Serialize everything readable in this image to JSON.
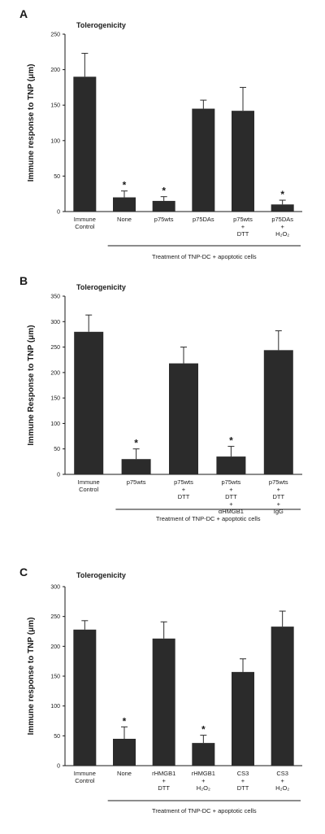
{
  "chart_data": [
    {
      "panel_label": "A",
      "type": "bar",
      "title": "Tolerogenicity",
      "ylabel": "Immune response to TNP (μm)",
      "ylim": [
        0,
        250
      ],
      "yticks": [
        0,
        50,
        100,
        150,
        200,
        250
      ],
      "categories": [
        [
          "Immune",
          "Control"
        ],
        [
          "None"
        ],
        [
          "p75wts"
        ],
        [
          "p75DAs"
        ],
        [
          "p75wts",
          "+",
          "DTT"
        ],
        [
          "p75DAs",
          "+",
          "H₂O₂"
        ]
      ],
      "values": [
        190,
        20,
        15,
        145,
        142,
        10
      ],
      "errors": [
        33,
        9,
        6,
        12,
        33,
        6
      ],
      "significant": [
        false,
        true,
        true,
        false,
        false,
        true
      ],
      "star_symbol": "*",
      "footnote": "Treatment of TNP-DC + apoptotic cells",
      "bracket_from": 1
    },
    {
      "panel_label": "B",
      "type": "bar",
      "title": "Tolerogenicity",
      "ylabel": "Immune Response to TNP (μm)",
      "ylim": [
        0,
        350
      ],
      "yticks": [
        0,
        50,
        100,
        150,
        200,
        250,
        300,
        350
      ],
      "categories": [
        [
          "Immune",
          "Control"
        ],
        [
          "p75wts"
        ],
        [
          "p75wts",
          "+",
          "DTT"
        ],
        [
          "p75wts",
          "+",
          "DTT",
          "+",
          "αHMGB1"
        ],
        [
          "p75wts",
          "+",
          "DTT",
          "+",
          "IgG"
        ]
      ],
      "values": [
        280,
        30,
        218,
        35,
        244
      ],
      "errors": [
        33,
        20,
        32,
        20,
        38
      ],
      "significant": [
        false,
        true,
        false,
        true,
        false
      ],
      "star_symbol": "*",
      "footnote": "Treatment of TNP-DC + apoptotic cells",
      "bracket_from": 1
    },
    {
      "panel_label": "C",
      "type": "bar",
      "title": "Tolerogenicity",
      "ylabel": "Immune response to TNP (μm)",
      "ylim": [
        0,
        300
      ],
      "yticks": [
        0,
        50,
        100,
        150,
        200,
        250,
        300
      ],
      "categories": [
        [
          "Immune",
          "Control"
        ],
        [
          "None"
        ],
        [
          "rHMGB1",
          "+",
          "DTT"
        ],
        [
          "rHMGB1",
          "+",
          "H₂O₂"
        ],
        [
          "CS3",
          "+",
          "DTT"
        ],
        [
          "CS3",
          "+",
          "H₂O₂"
        ]
      ],
      "values": [
        228,
        45,
        213,
        38,
        157,
        233
      ],
      "errors": [
        15,
        20,
        28,
        13,
        22,
        26
      ],
      "significant": [
        false,
        true,
        false,
        true,
        false,
        false
      ],
      "star_symbol": "*",
      "footnote": "Treatment of TNP-DC + apoptotic cells",
      "bracket_from": 1
    }
  ],
  "colors": {
    "bar": "#2b2b2b",
    "axis": "#1a1a1a",
    "text": "#1a1a1a"
  }
}
